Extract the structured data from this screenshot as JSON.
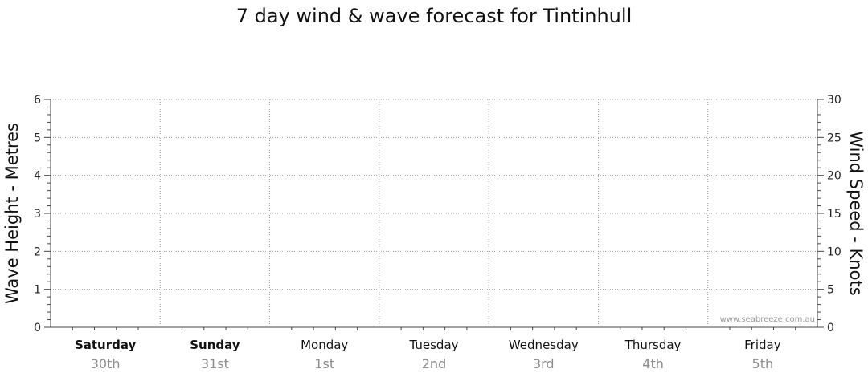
{
  "chart_data": {
    "type": "line",
    "title": "7 day wind & wave forecast for Tintinhull",
    "ylabel_left": "Wave Height - Metres",
    "ylabel_right": "Wind Speed - Knots",
    "ylim_left": [
      0,
      6
    ],
    "ylim_right": [
      0,
      30
    ],
    "yticks_left": [
      "0",
      "1",
      "2",
      "3",
      "4",
      "5",
      "6"
    ],
    "yticks_right": [
      "0",
      "5",
      "10",
      "15",
      "20",
      "25",
      "30"
    ],
    "grid": true,
    "days": [
      {
        "day": "Saturday",
        "date": "30th",
        "bold": true
      },
      {
        "day": "Sunday",
        "date": "31st",
        "bold": true
      },
      {
        "day": "Monday",
        "date": "1st",
        "bold": false
      },
      {
        "day": "Tuesday",
        "date": "2nd",
        "bold": false
      },
      {
        "day": "Wednesday",
        "date": "3rd",
        "bold": false
      },
      {
        "day": "Thursday",
        "date": "4th",
        "bold": false
      },
      {
        "day": "Friday",
        "date": "5th",
        "bold": false
      }
    ],
    "series": []
  },
  "watermark": "www.seabreeze.com.au",
  "colors": {
    "grid": "#9a9a9a",
    "axis": "#444444",
    "date": "#8c8c8c"
  }
}
